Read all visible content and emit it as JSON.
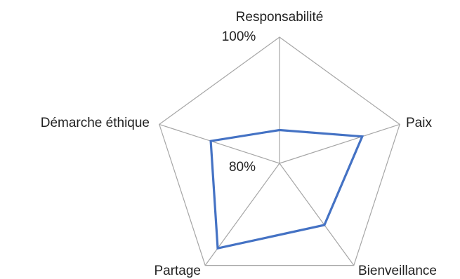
{
  "chart_data": {
    "type": "radar",
    "categories": [
      "Responsabilité",
      "Paix",
      "Bienveillance",
      "Partage",
      "Démarche éthique"
    ],
    "series": [
      {
        "values": [
          0.816,
          0.922,
          0.901,
          0.958,
          0.893
        ]
      }
    ],
    "range": [
      0.75,
      1.0
    ],
    "tick_labels": [
      "80%",
      "100%"
    ],
    "grid": true,
    "legend": "none",
    "colors": {
      "series": "#4472c4",
      "grid": "#a6a6a6",
      "text": "#222222"
    }
  }
}
